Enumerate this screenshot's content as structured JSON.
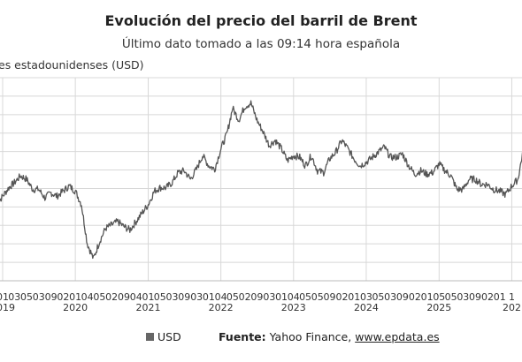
{
  "header": {
    "title": "Evolución del precio del barril de Brent",
    "subtitle": "Último dato tomado a las 09:14 hora española"
  },
  "footer": {
    "legend_label": "USD",
    "source_label": "Fuente:",
    "source_text": "Yahoo Finance,",
    "source_link": "www.epdata.es"
  },
  "colors": {
    "line": "#555555",
    "grid": "#d8d8d8"
  },
  "chart_data": {
    "type": "line",
    "title": "Evolución del precio del barril de Brent",
    "subtitle": "Último dato tomado a las 09:14 hora española",
    "ylabel": "es estadounidenses (USD)",
    "ylim": [
      10,
      130
    ],
    "grid": true,
    "legend": "bottom",
    "series": [
      {
        "name": "USD",
        "points": [
          [
            "2018-12",
            55
          ],
          [
            "2019-01",
            60
          ],
          [
            "2019-02",
            65
          ],
          [
            "2019-03",
            68
          ],
          [
            "2019-04",
            72
          ],
          [
            "2019-05",
            70
          ],
          [
            "2019-06",
            64
          ],
          [
            "2019-07",
            64
          ],
          [
            "2019-08",
            59
          ],
          [
            "2019-09",
            62
          ],
          [
            "2019-10",
            60
          ],
          [
            "2019-11",
            63
          ],
          [
            "2019-12",
            66
          ],
          [
            "2020-01",
            63
          ],
          [
            "2020-02",
            55
          ],
          [
            "2020-03",
            32
          ],
          [
            "2020-04",
            23
          ],
          [
            "2020-05",
            33
          ],
          [
            "2020-06",
            41
          ],
          [
            "2020-07",
            43
          ],
          [
            "2020-08",
            45
          ],
          [
            "2020-09",
            42
          ],
          [
            "2020-10",
            40
          ],
          [
            "2020-11",
            45
          ],
          [
            "2020-12",
            50
          ],
          [
            "2021-01",
            55
          ],
          [
            "2021-02",
            63
          ],
          [
            "2021-03",
            65
          ],
          [
            "2021-04",
            65
          ],
          [
            "2021-05",
            68
          ],
          [
            "2021-06",
            74
          ],
          [
            "2021-07",
            75
          ],
          [
            "2021-08",
            70
          ],
          [
            "2021-09",
            76
          ],
          [
            "2021-10",
            84
          ],
          [
            "2021-11",
            78
          ],
          [
            "2021-12",
            76
          ],
          [
            "2022-01",
            88
          ],
          [
            "2022-02",
            97
          ],
          [
            "2022-03",
            112
          ],
          [
            "2022-04",
            105
          ],
          [
            "2022-05",
            113
          ],
          [
            "2022-06",
            115
          ],
          [
            "2022-07",
            105
          ],
          [
            "2022-08",
            98
          ],
          [
            "2022-09",
            90
          ],
          [
            "2022-10",
            93
          ],
          [
            "2022-11",
            88
          ],
          [
            "2022-12",
            81
          ],
          [
            "2023-01",
            84
          ],
          [
            "2023-02",
            83
          ],
          [
            "2023-03",
            78
          ],
          [
            "2023-04",
            84
          ],
          [
            "2023-05",
            75
          ],
          [
            "2023-06",
            74
          ],
          [
            "2023-07",
            82
          ],
          [
            "2023-08",
            86
          ],
          [
            "2023-09",
            93
          ],
          [
            "2023-10",
            88
          ],
          [
            "2023-11",
            82
          ],
          [
            "2023-12",
            78
          ],
          [
            "2024-01",
            80
          ],
          [
            "2024-02",
            83
          ],
          [
            "2024-03",
            86
          ],
          [
            "2024-04",
            89
          ],
          [
            "2024-05",
            83
          ],
          [
            "2024-06",
            83
          ],
          [
            "2024-07",
            85
          ],
          [
            "2024-08",
            78
          ],
          [
            "2024-09",
            73
          ],
          [
            "2024-10",
            75
          ],
          [
            "2024-11",
            73
          ],
          [
            "2024-12",
            74
          ],
          [
            "2025-01",
            79
          ],
          [
            "2025-02",
            75
          ],
          [
            "2025-03",
            72
          ],
          [
            "2025-04",
            64
          ],
          [
            "2025-05",
            64
          ],
          [
            "2025-06",
            70
          ],
          [
            "2025-07",
            70
          ],
          [
            "2025-08",
            67
          ],
          [
            "2025-09",
            67
          ],
          [
            "2025-10",
            64
          ],
          [
            "2025-11",
            63
          ],
          [
            "2025-12",
            61
          ],
          [
            "2026-01",
            66
          ],
          [
            "2026-02",
            70
          ],
          [
            "2026-03",
            88
          ]
        ]
      }
    ],
    "x_ticks": [
      {
        "label": "01",
        "date": "2019-01"
      },
      {
        "label": "03",
        "date": "2019-03"
      },
      {
        "label": "05",
        "date": "2019-05"
      },
      {
        "label": "03",
        "date": "2019-07"
      },
      {
        "label": "09",
        "date": "2019-09"
      },
      {
        "label": "02",
        "date": "2019-11"
      },
      {
        "label": "01",
        "date": "2020-01"
      },
      {
        "label": "04",
        "date": "2020-03"
      },
      {
        "label": "05",
        "date": "2020-05"
      },
      {
        "label": "02",
        "date": "2020-07"
      },
      {
        "label": "09",
        "date": "2020-09"
      },
      {
        "label": "04",
        "date": "2020-11"
      },
      {
        "label": "01",
        "date": "2021-01"
      },
      {
        "label": "05",
        "date": "2021-03"
      },
      {
        "label": "03",
        "date": "2021-05"
      },
      {
        "label": "09",
        "date": "2021-07"
      },
      {
        "label": "03",
        "date": "2021-09"
      },
      {
        "label": "01",
        "date": "2021-11"
      },
      {
        "label": "04",
        "date": "2022-01"
      },
      {
        "label": "05",
        "date": "2022-03"
      },
      {
        "label": "02",
        "date": "2022-05"
      },
      {
        "label": "09",
        "date": "2022-07"
      },
      {
        "label": "03",
        "date": "2022-09"
      },
      {
        "label": "01",
        "date": "2022-11"
      },
      {
        "label": "04",
        "date": "2023-01"
      },
      {
        "label": "05",
        "date": "2023-03"
      },
      {
        "label": "05",
        "date": "2023-05"
      },
      {
        "label": "09",
        "date": "2023-07"
      },
      {
        "label": "02",
        "date": "2023-09"
      },
      {
        "label": "01",
        "date": "2023-11"
      },
      {
        "label": "03",
        "date": "2024-01"
      },
      {
        "label": "05",
        "date": "2024-03"
      },
      {
        "label": "03",
        "date": "2024-05"
      },
      {
        "label": "09",
        "date": "2024-07"
      },
      {
        "label": "02",
        "date": "2024-09"
      },
      {
        "label": "01",
        "date": "2024-11"
      },
      {
        "label": "05",
        "date": "2025-01"
      },
      {
        "label": "05",
        "date": "2025-03"
      },
      {
        "label": "03",
        "date": "2025-05"
      },
      {
        "label": "09",
        "date": "2025-07"
      },
      {
        "label": "02",
        "date": "2025-09"
      },
      {
        "label": "01",
        "date": "2025-11"
      },
      {
        "label": "1",
        "date": "2026-01"
      }
    ],
    "year_labels": [
      {
        "label": "2019",
        "date": "2019-01"
      },
      {
        "label": "2020",
        "date": "2020-01"
      },
      {
        "label": "2021",
        "date": "2021-01"
      },
      {
        "label": "2022",
        "date": "2022-01"
      },
      {
        "label": "2023",
        "date": "2023-01"
      },
      {
        "label": "2024",
        "date": "2024-01"
      },
      {
        "label": "2025",
        "date": "2025-01"
      },
      {
        "label": "202",
        "date": "2026-01"
      }
    ]
  }
}
